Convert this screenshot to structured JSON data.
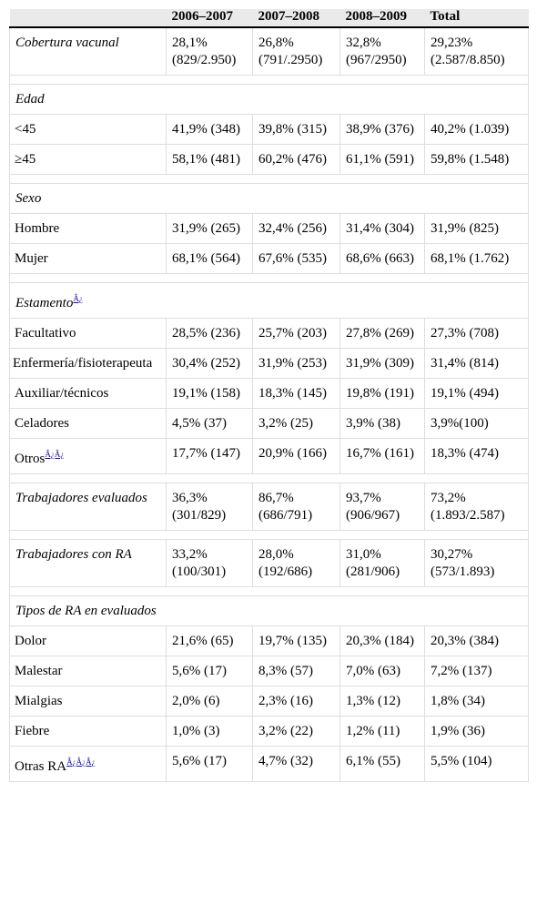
{
  "headers": [
    "",
    "2006–2007",
    "2007–2008",
    "2008–2009",
    "Total"
  ],
  "rows": {
    "cobertura": {
      "label": "Cobertura vacunal",
      "v": [
        "28,1% (829/2.950)",
        "26,8% (791/.2950)",
        "32,8% (967/2950)",
        "29,23% (2.587/8.850)"
      ]
    },
    "edad": {
      "label": "Edad"
    },
    "lt45": {
      "label": "<45",
      "v": [
        "41,9% (348)",
        "39,8% (315)",
        "38,9% (376)",
        "40,2% (1.039)"
      ]
    },
    "ge45": {
      "label": "≥45",
      "v": [
        "58,1% (481)",
        "60,2% (476)",
        "61,1% (591)",
        "59,8% (1.548)"
      ]
    },
    "sexo": {
      "label": "Sexo"
    },
    "hombre": {
      "label": "Hombre",
      "v": [
        "31,9% (265)",
        "32,4% (256)",
        "31,4% (304)",
        "31,9% (825)"
      ]
    },
    "mujer": {
      "label": "Mujer",
      "v": [
        "68,1% (564)",
        "67,6% (535)",
        "68,6% (663)",
        "68,1% (1.762)"
      ]
    },
    "estamento": {
      "label": "Estamento",
      "note": "Â¿"
    },
    "facultativo": {
      "label": "Facultativo",
      "v": [
        "28,5% (236)",
        "25,7% (203)",
        "27,8% (269)",
        "27,3% (708)"
      ]
    },
    "enfermeria": {
      "label": "Enfermería/fisioterapeuta",
      "v": [
        "30,4% (252)",
        "31,9% (253)",
        "31,9% (309)",
        "31,4% (814)"
      ]
    },
    "auxiliar": {
      "label": "Auxiliar/técnicos",
      "v": [
        "19,1% (158)",
        "18,3% (145)",
        "19,8% (191)",
        "19,1% (494)"
      ]
    },
    "celadores": {
      "label": "Celadores",
      "v": [
        "4,5% (37)",
        "3,2% (25)",
        "3,9% (38)",
        "3,9%(100)"
      ]
    },
    "otros": {
      "label": "Otros",
      "note": "Â¿Â¿",
      "v": [
        "17,7% (147)",
        "20,9% (166)",
        "16,7% (161)",
        "18,3% (474)"
      ]
    },
    "evaluados": {
      "label": "Trabajadores evaluados",
      "v": [
        "36,3% (301/829)",
        "86,7% (686/791)",
        "93,7% (906/967)",
        "73,2% (1.893/2.587)"
      ]
    },
    "conra": {
      "label": "Trabajadores con RA",
      "v": [
        "33,2% (100/301)",
        "28,0% (192/686)",
        "31,0% (281/906)",
        "30,27% (573/1.893)"
      ]
    },
    "tipos": {
      "label": "Tipos de RA en evaluados"
    },
    "dolor": {
      "label": "Dolor",
      "v": [
        "21,6% (65)",
        "19,7% (135)",
        "20,3% (184)",
        "20,3% (384)"
      ]
    },
    "malestar": {
      "label": "Malestar",
      "v": [
        "5,6% (17)",
        "8,3% (57)",
        "7,0% (63)",
        "7,2% (137)"
      ]
    },
    "mialgias": {
      "label": "Mialgias",
      "v": [
        "2,0% (6)",
        "2,3% (16)",
        "1,3% (12)",
        "1,8% (34)"
      ]
    },
    "fiebre": {
      "label": "Fiebre",
      "v": [
        "1,0% (3)",
        "3,2% (22)",
        "1,2% (11)",
        "1,9% (36)"
      ]
    },
    "otrasra": {
      "label": "Otras RA",
      "note": "Â¿Â¿Â¿",
      "v": [
        "5,6% (17)",
        "4,7% (32)",
        "6,1% (55)",
        "5,5% (104)"
      ]
    }
  }
}
